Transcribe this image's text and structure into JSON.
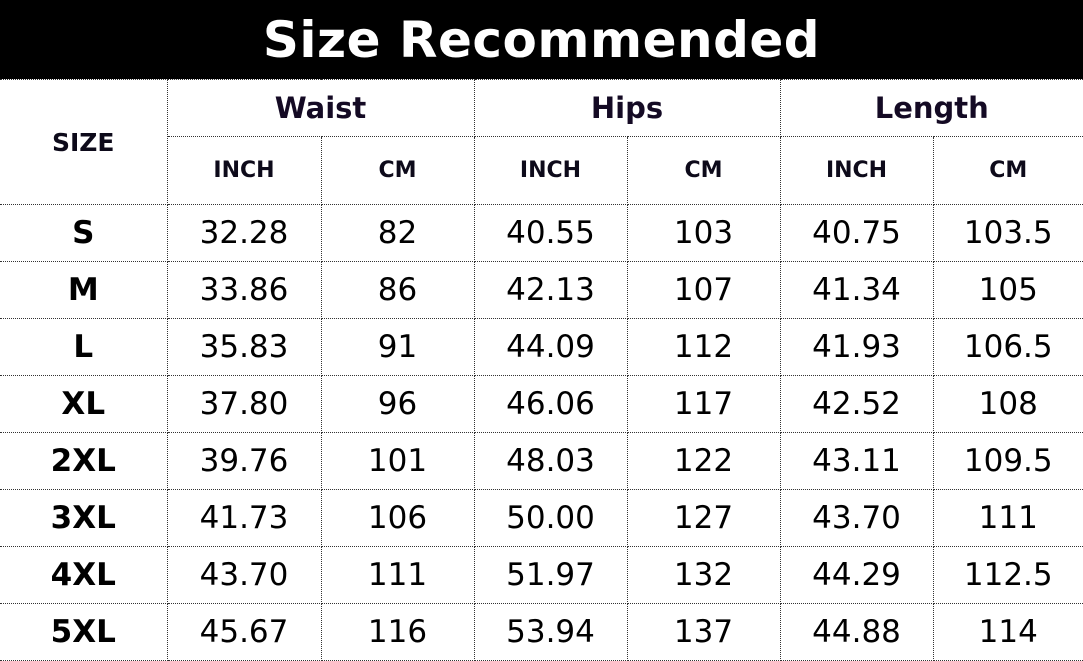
{
  "title": "Size Recommended",
  "size_header": "SIZE",
  "groups": [
    "Waist",
    "Hips",
    "Length"
  ],
  "units": [
    "INCH",
    "CM",
    "INCH",
    "CM",
    "INCH",
    "CM"
  ],
  "rows": [
    [
      "S",
      "32.28",
      "82",
      "40.55",
      "103",
      "40.75",
      "103.5"
    ],
    [
      "M",
      "33.86",
      "86",
      "42.13",
      "107",
      "41.34",
      "105"
    ],
    [
      "L",
      "35.83",
      "91",
      "44.09",
      "112",
      "41.93",
      "106.5"
    ],
    [
      "XL",
      "37.80",
      "96",
      "46.06",
      "117",
      "42.52",
      "108"
    ],
    [
      "2XL",
      "39.76",
      "101",
      "48.03",
      "122",
      "43.11",
      "109.5"
    ],
    [
      "3XL",
      "41.73",
      "106",
      "50.00",
      "127",
      "43.70",
      "111"
    ],
    [
      "4XL",
      "43.70",
      "111",
      "51.97",
      "132",
      "44.29",
      "112.5"
    ],
    [
      "5XL",
      "45.67",
      "116",
      "53.94",
      "137",
      "44.88",
      "114"
    ]
  ]
}
